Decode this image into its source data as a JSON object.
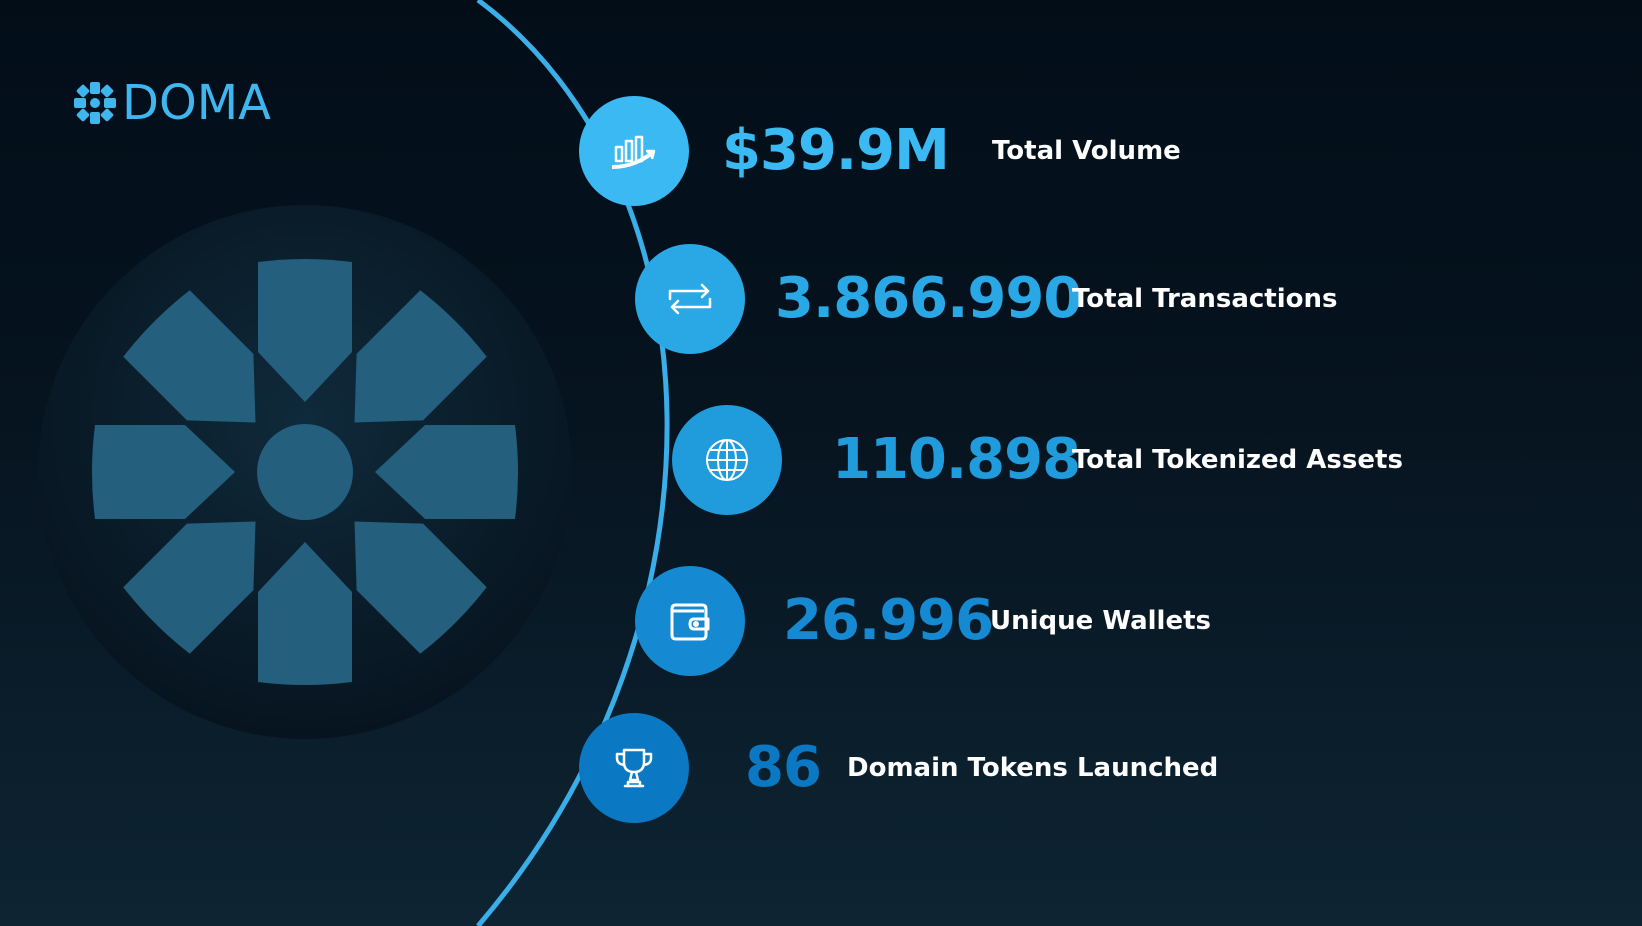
{
  "brand": {
    "name": "DOMA",
    "color": "#3fb6ee"
  },
  "stats": [
    {
      "value": "$39.9M",
      "label": "Total Volume",
      "icon": "chart-growth-icon",
      "color": "#3ab9f2"
    },
    {
      "value": "3.866.990",
      "label": "Total Transactions",
      "icon": "swap-arrows-icon",
      "color": "#2aa8e5"
    },
    {
      "value": "110.898",
      "label": "Total Tokenized Assets",
      "icon": "globe-icon",
      "color": "#209cdd"
    },
    {
      "value": "26.996",
      "label": "Unique Wallets",
      "icon": "wallet-icon",
      "color": "#158ad2"
    },
    {
      "value": "86",
      "label": "Domain Tokens Launched",
      "icon": "trophy-icon",
      "color": "#0a78c2"
    }
  ]
}
